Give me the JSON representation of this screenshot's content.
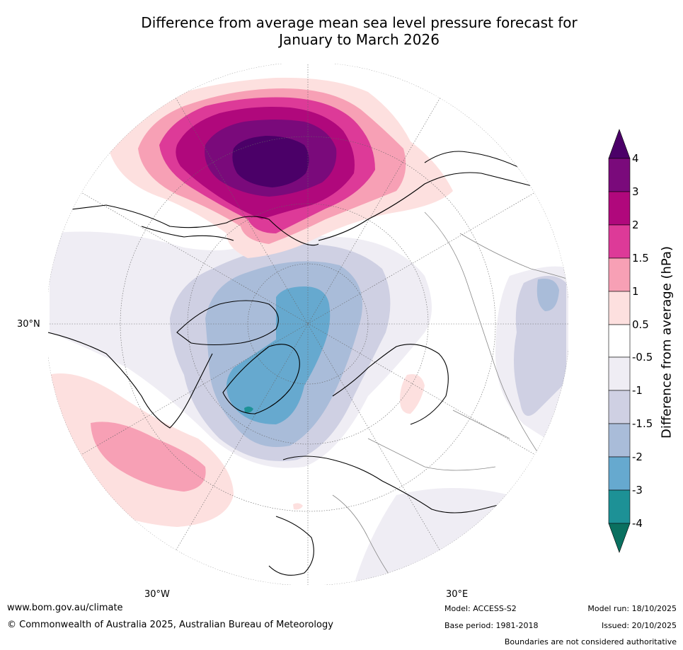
{
  "title": {
    "line1": "Difference from average mean sea level pressure forecast for",
    "line2": "January to March 2026"
  },
  "map": {
    "projection": "north polar stereographic",
    "lat_label": "30°N",
    "lon_labels": {
      "west": "30°W",
      "east": "30°E"
    }
  },
  "legend": {
    "title": "Difference from average (hPa)",
    "ticks": [
      "4",
      "3",
      "2",
      "1.5",
      "1",
      "0.5",
      "-0.5",
      "-1",
      "-1.5",
      "-2",
      "-3",
      "-4"
    ],
    "colors": {
      "above_4": "#4b0068",
      "3_to_4": "#7a0a7b",
      "2_to_3": "#b0087c",
      "1_5_to_2": "#dd3a98",
      "1_to_1_5": "#f7a0b5",
      "0_5_to_1": "#fde0df",
      "neutral": "#ffffff",
      "m1_to_m0_5": "#efedf4",
      "m1_5_to_m1": "#cfd0e3",
      "m2_to_m1_5": "#a9bcd9",
      "m3_to_m2": "#66a9cf",
      "m4_to_m3": "#1d9196",
      "below_m4": "#0a7060"
    }
  },
  "footer": {
    "website": "www.bom.gov.au/climate",
    "copyright": "© Commonwealth of Australia 2025, Australian Bureau of Meteorology",
    "model": "Model: ACCESS-S2",
    "base_period": "Base period: 1981-2018",
    "model_run": "Model run: 18/10/2025",
    "issued": "Issued: 20/10/2025",
    "disclaimer": "Boundaries are not considered authoritative"
  }
}
